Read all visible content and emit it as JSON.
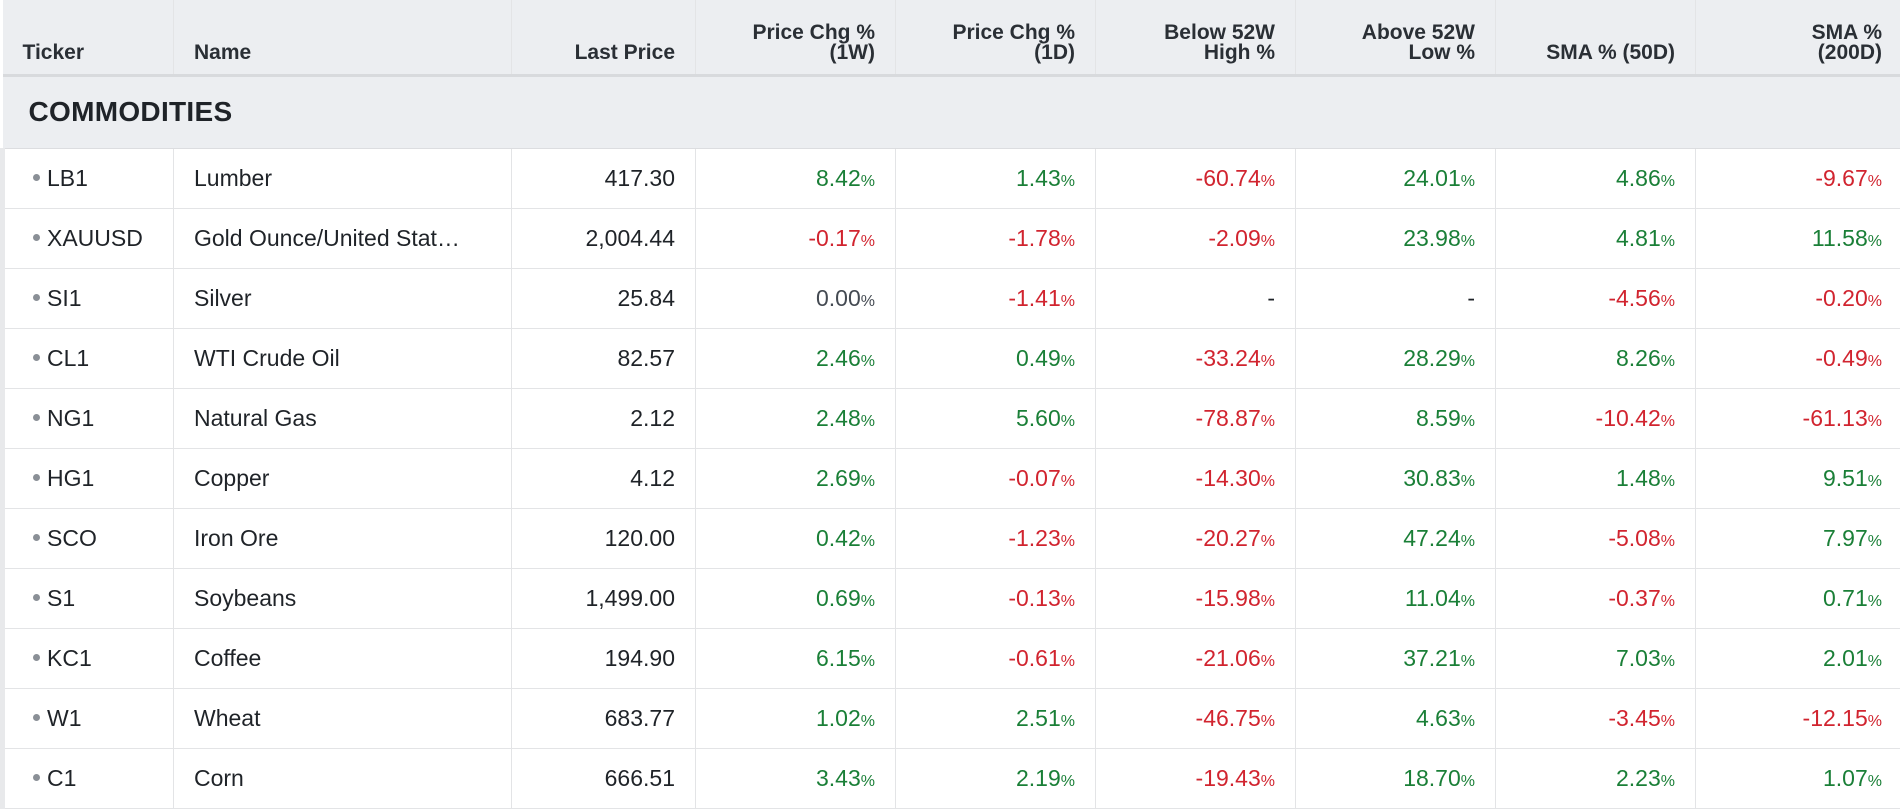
{
  "colors": {
    "positive": "#1a7f37",
    "negative": "#d1242f",
    "neutral": "#444a52"
  },
  "columns": [
    {
      "line1": "Ticker",
      "line2": ""
    },
    {
      "line1": "Name",
      "line2": ""
    },
    {
      "line1": "Last Price",
      "line2": ""
    },
    {
      "line1": "Price Chg %",
      "line2": "(1W)"
    },
    {
      "line1": "Price Chg %",
      "line2": "(1D)"
    },
    {
      "line1": "Below 52W",
      "line2": "High %"
    },
    {
      "line1": "Above 52W",
      "line2": "Low %"
    },
    {
      "line1": "SMA % (50D)",
      "line2": ""
    },
    {
      "line1": "SMA %",
      "line2": "(200D)"
    }
  ],
  "section_title": "COMMODITIES",
  "rows": [
    {
      "ticker": "LB1",
      "name": "Lumber",
      "price": "417.30",
      "vals": [
        "8.42",
        "1.43",
        "-60.74",
        "24.01",
        "4.86",
        "-9.67"
      ]
    },
    {
      "ticker": "XAUUSD",
      "name": "Gold Ounce/United Stat…",
      "price": "2,004.44",
      "vals": [
        "-0.17",
        "-1.78",
        "-2.09",
        "23.98",
        "4.81",
        "11.58"
      ]
    },
    {
      "ticker": "SI1",
      "name": "Silver",
      "price": "25.84",
      "vals": [
        "0.00",
        "-1.41",
        "-",
        "-",
        "-4.56",
        "-0.20"
      ]
    },
    {
      "ticker": "CL1",
      "name": "WTI Crude Oil",
      "price": "82.57",
      "vals": [
        "2.46",
        "0.49",
        "-33.24",
        "28.29",
        "8.26",
        "-0.49"
      ]
    },
    {
      "ticker": "NG1",
      "name": "Natural Gas",
      "price": "2.12",
      "vals": [
        "2.48",
        "5.60",
        "-78.87",
        "8.59",
        "-10.42",
        "-61.13"
      ]
    },
    {
      "ticker": "HG1",
      "name": "Copper",
      "price": "4.12",
      "vals": [
        "2.69",
        "-0.07",
        "-14.30",
        "30.83",
        "1.48",
        "9.51"
      ]
    },
    {
      "ticker": "SCO",
      "name": "Iron Ore",
      "price": "120.00",
      "vals": [
        "0.42",
        "-1.23",
        "-20.27",
        "47.24",
        "-5.08",
        "7.97"
      ]
    },
    {
      "ticker": "S1",
      "name": "Soybeans",
      "price": "1,499.00",
      "vals": [
        "0.69",
        "-0.13",
        "-15.98",
        "11.04",
        "-0.37",
        "0.71"
      ]
    },
    {
      "ticker": "KC1",
      "name": "Coffee",
      "price": "194.90",
      "vals": [
        "6.15",
        "-0.61",
        "-21.06",
        "37.21",
        "7.03",
        "2.01"
      ]
    },
    {
      "ticker": "W1",
      "name": "Wheat",
      "price": "683.77",
      "vals": [
        "1.02",
        "2.51",
        "-46.75",
        "4.63",
        "-3.45",
        "-12.15"
      ]
    },
    {
      "ticker": "C1",
      "name": "Corn",
      "price": "666.51",
      "vals": [
        "3.43",
        "2.19",
        "-19.43",
        "18.70",
        "2.23",
        "1.07"
      ]
    }
  ]
}
